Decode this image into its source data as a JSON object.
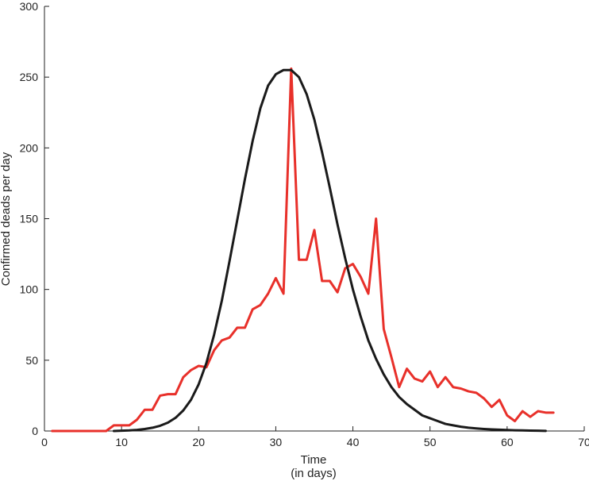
{
  "chart_data": {
    "type": "line",
    "title": "",
    "xlabel": "Time",
    "xlabel_sub": "(in days)",
    "ylabel": "Confirmed deads per day",
    "xlim": [
      0,
      70
    ],
    "ylim": [
      0,
      300
    ],
    "xticks": [
      0,
      10,
      20,
      30,
      40,
      50,
      60,
      70
    ],
    "yticks": [
      0,
      50,
      100,
      150,
      200,
      250,
      300
    ],
    "grid": false,
    "legend": "none",
    "series": [
      {
        "color": "#e8302a",
        "style": "line",
        "x": [
          1,
          2,
          3,
          4,
          5,
          6,
          7,
          8,
          9,
          10,
          11,
          12,
          13,
          14,
          15,
          16,
          17,
          18,
          19,
          20,
          21,
          22,
          23,
          24,
          25,
          26,
          27,
          28,
          29,
          30,
          31,
          32,
          33,
          34,
          35,
          36,
          37,
          38,
          39,
          40,
          41,
          42,
          43,
          44,
          45,
          46,
          47,
          48,
          49,
          50,
          51,
          52,
          53,
          54,
          55,
          56,
          57,
          58,
          59,
          60,
          61,
          62,
          63,
          64,
          65,
          66
        ],
        "y": [
          0,
          0,
          0,
          0,
          0,
          0,
          0,
          0,
          4,
          4,
          4,
          8,
          15,
          15,
          25,
          26,
          26,
          38,
          43,
          46,
          45,
          57,
          64,
          66,
          73,
          73,
          86,
          89,
          97,
          108,
          97,
          256,
          121,
          121,
          142,
          106,
          106,
          98,
          115,
          118,
          109,
          97,
          150,
          72,
          52,
          31,
          44,
          37,
          35,
          42,
          31,
          38,
          31,
          30,
          28,
          27,
          23,
          17,
          22,
          11,
          7,
          14,
          10,
          14,
          13,
          13
        ]
      },
      {
        "color": "#1a1a1a",
        "style": "curve",
        "x": [
          9,
          10,
          11,
          12,
          13,
          14,
          15,
          16,
          17,
          18,
          19,
          20,
          21,
          22,
          23,
          24,
          25,
          26,
          27,
          28,
          29,
          30,
          31,
          32,
          33,
          34,
          35,
          36,
          37,
          38,
          39,
          40,
          41,
          42,
          43,
          44,
          45,
          46,
          47,
          48,
          49,
          50,
          51,
          52,
          53,
          54,
          55,
          56,
          57,
          58,
          59,
          60,
          61,
          62,
          63,
          64,
          65
        ],
        "y": [
          0,
          0.2,
          0.4,
          0.8,
          1.4,
          2.3,
          3.7,
          5.9,
          9.3,
          14.5,
          22,
          33,
          48,
          68,
          92,
          120,
          149,
          178,
          205,
          228,
          244,
          252,
          255,
          255,
          250,
          238,
          220,
          197,
          172,
          146,
          122,
          100,
          81,
          64,
          51,
          40,
          31,
          24,
          19,
          15,
          11,
          9,
          7,
          5,
          4,
          3,
          2.3,
          1.8,
          1.4,
          1.1,
          0.9,
          0.7,
          0.5,
          0.4,
          0.3,
          0.2,
          0.1
        ]
      }
    ]
  }
}
